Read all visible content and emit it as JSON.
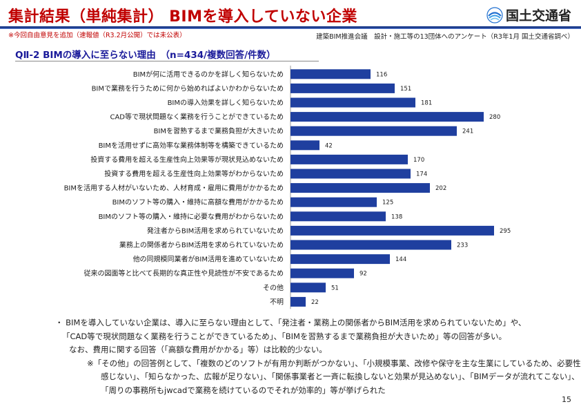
{
  "header": {
    "title": "集計結果（単純集計）  BIMを導入していない企業",
    "logo_text": "国土交通省",
    "note_left": "※今回自由意見を追加（速報値（R3.2月公開）では未公表）",
    "note_right": "建築BIM推進会議　設計・施工等の13団体へのアンケート（R3年1月 国土交通省調べ）"
  },
  "subtitle": "QⅡ-2  BIMの導入に至らない理由　（n=434/複数回答/件数）",
  "chart_data": {
    "type": "bar",
    "orientation": "horizontal",
    "categories": [
      "BIMが何に活用できるのかを詳しく知らないため",
      "BIMで業務を行うために何から始めればよいかわからないため",
      "BIMの導入効果を詳しく知らないため",
      "CAD等で現状問題なく業務を行うことができているため",
      "BIMを習熟するまで業務負担が大きいため",
      "BIMを活用せずに高効率な業務体制等を構築できているため",
      "投資する費用を超える生産性向上効果等が現状見込めないため",
      "投資する費用を超える生産性向上効果等がわからないため",
      "BIMを活用する人材がいないため、人材育成・雇用に費用がかかるため",
      "BIMのソフト等の購入・維持に高額な費用がかかるため",
      "BIMのソフト等の購入・維持に必要な費用がわからないため",
      "発注者からBIM活用を求められていないため",
      "業務上の関係者からBIM活用を求められていないため",
      "他の同規模同業者がBIM活用を進めていないため",
      "従来の図面等と比べて長期的な真正性や見読性が不安であるため",
      "その他",
      "不明"
    ],
    "values": [
      116,
      151,
      181,
      280,
      241,
      42,
      170,
      174,
      202,
      125,
      138,
      295,
      233,
      144,
      92,
      51,
      22
    ],
    "bar_color": "#1f3f9f",
    "grid": false
  },
  "bullets": [
    "・ BIMを導入していない企業は、導入に至らない理由として、「発注者・業務上の関係者からBIM活用を求められていないため」や、",
    "「CAD等で現状問題なく業務を行うことができているため」、「BIMを習熟するまで業務負担が大きいため」等の回答が多い。",
    "なお、費用に関する回答（「高額な費用がかかる」等）は比較的少ない。",
    "※「その他」の回答例として、「複数のどのソフトが有用か判断がつかない」、「小規模事業、改修や保守を主な生業にしているため、必要性を",
    "感じない」、「知らなかった、広報が足りない」、「関係事業者と一斉に転換しないと効果が見込めない」、「BIMデータが流れてこない」、",
    "「周りの事務所もjwcadで業務を続けているのでそれが効率的」等が挙げられた"
  ],
  "page_number": "15"
}
